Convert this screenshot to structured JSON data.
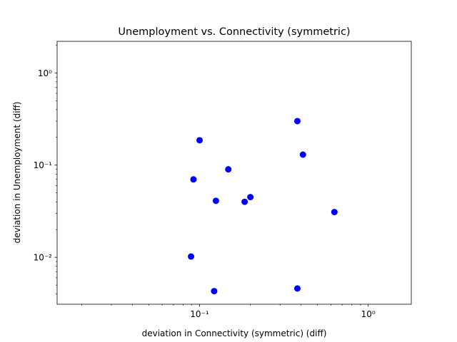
{
  "chart_data": {
    "type": "scatter",
    "title": "Unemployment vs. Connectivity (symmetric)",
    "xlabel": "deviation in Connectivity (symmetric) (diff)",
    "ylabel": "deviation in Unemployment (diff)",
    "xscale": "log",
    "yscale": "log",
    "xlim": [
      0.0143,
      1.8
    ],
    "ylim": [
      0.0031,
      2.2
    ],
    "xticks": [
      {
        "value": 0.1,
        "label": "10⁻¹"
      },
      {
        "value": 1,
        "label": "10⁰"
      }
    ],
    "yticks": [
      {
        "value": 0.01,
        "label": "10⁻²"
      },
      {
        "value": 0.1,
        "label": "10⁻¹"
      },
      {
        "value": 1,
        "label": "10⁰"
      }
    ],
    "marker_color": "#0000ff",
    "grid": false,
    "points": [
      {
        "x": 0.1,
        "y": 0.186
      },
      {
        "x": 0.092,
        "y": 0.07
      },
      {
        "x": 0.148,
        "y": 0.09
      },
      {
        "x": 0.125,
        "y": 0.041
      },
      {
        "x": 0.185,
        "y": 0.04
      },
      {
        "x": 0.2,
        "y": 0.045
      },
      {
        "x": 0.38,
        "y": 0.3
      },
      {
        "x": 0.41,
        "y": 0.13
      },
      {
        "x": 0.63,
        "y": 0.031
      },
      {
        "x": 0.089,
        "y": 0.0102
      },
      {
        "x": 0.122,
        "y": 0.0043
      },
      {
        "x": 0.38,
        "y": 0.0046
      }
    ]
  }
}
